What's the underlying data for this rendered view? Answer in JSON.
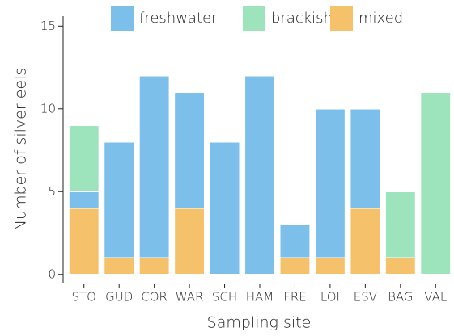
{
  "chart_data": {
    "type": "stacked_bar",
    "categories": [
      "STO",
      "GUD",
      "COR",
      "WAR",
      "SCH",
      "HAM",
      "FRE",
      "LOI",
      "ESV",
      "BAG",
      "VAL"
    ],
    "series": [
      {
        "name": "mixed",
        "color": "#f5c26b",
        "values": [
          4,
          1,
          1,
          4,
          0,
          0,
          1,
          1,
          4,
          1,
          0
        ]
      },
      {
        "name": "freshwater",
        "color": "#7bbfea",
        "values": [
          1,
          7,
          11,
          7,
          8,
          12,
          2,
          9,
          6,
          0,
          0
        ]
      },
      {
        "name": "brackish",
        "color": "#9de3bb",
        "values": [
          4,
          0,
          0,
          0,
          0,
          0,
          0,
          0,
          0,
          4,
          11
        ]
      }
    ],
    "legend_order": [
      "freshwater",
      "brackish",
      "mixed"
    ],
    "xlabel": "Sampling site",
    "ylabel": "Number of silver eels",
    "ylim": [
      -0.5,
      15.6
    ],
    "yticks": [
      0,
      5,
      10,
      15
    ]
  }
}
